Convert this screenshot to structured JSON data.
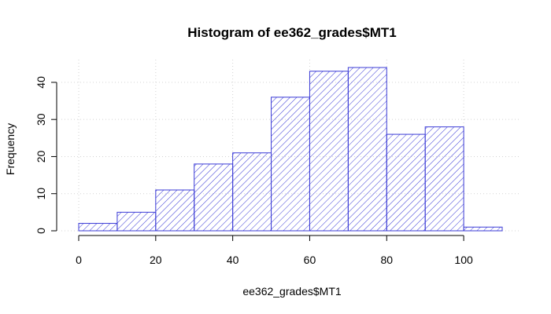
{
  "chart_data": {
    "type": "bar",
    "title": "Histogram of ee362_grades$MT1",
    "xlabel": "ee362_grades$MT1",
    "ylabel": "Frequency",
    "bins": [
      {
        "start": 0,
        "end": 10,
        "value": 2
      },
      {
        "start": 10,
        "end": 20,
        "value": 5
      },
      {
        "start": 20,
        "end": 30,
        "value": 11
      },
      {
        "start": 30,
        "end": 40,
        "value": 18
      },
      {
        "start": 40,
        "end": 50,
        "value": 21
      },
      {
        "start": 50,
        "end": 60,
        "value": 36
      },
      {
        "start": 60,
        "end": 70,
        "value": 43
      },
      {
        "start": 70,
        "end": 80,
        "value": 44
      },
      {
        "start": 80,
        "end": 90,
        "value": 26
      },
      {
        "start": 90,
        "end": 100,
        "value": 28
      },
      {
        "start": 100,
        "end": 110,
        "value": 1
      }
    ],
    "x_ticks": [
      0,
      20,
      40,
      60,
      80,
      100
    ],
    "y_ticks": [
      0,
      10,
      20,
      30,
      40
    ],
    "xlim": [
      0,
      110
    ],
    "ylim": [
      0,
      44
    ],
    "grid": true,
    "bar_color": "#3b3bd6",
    "fill": "diagonal-hatch"
  }
}
